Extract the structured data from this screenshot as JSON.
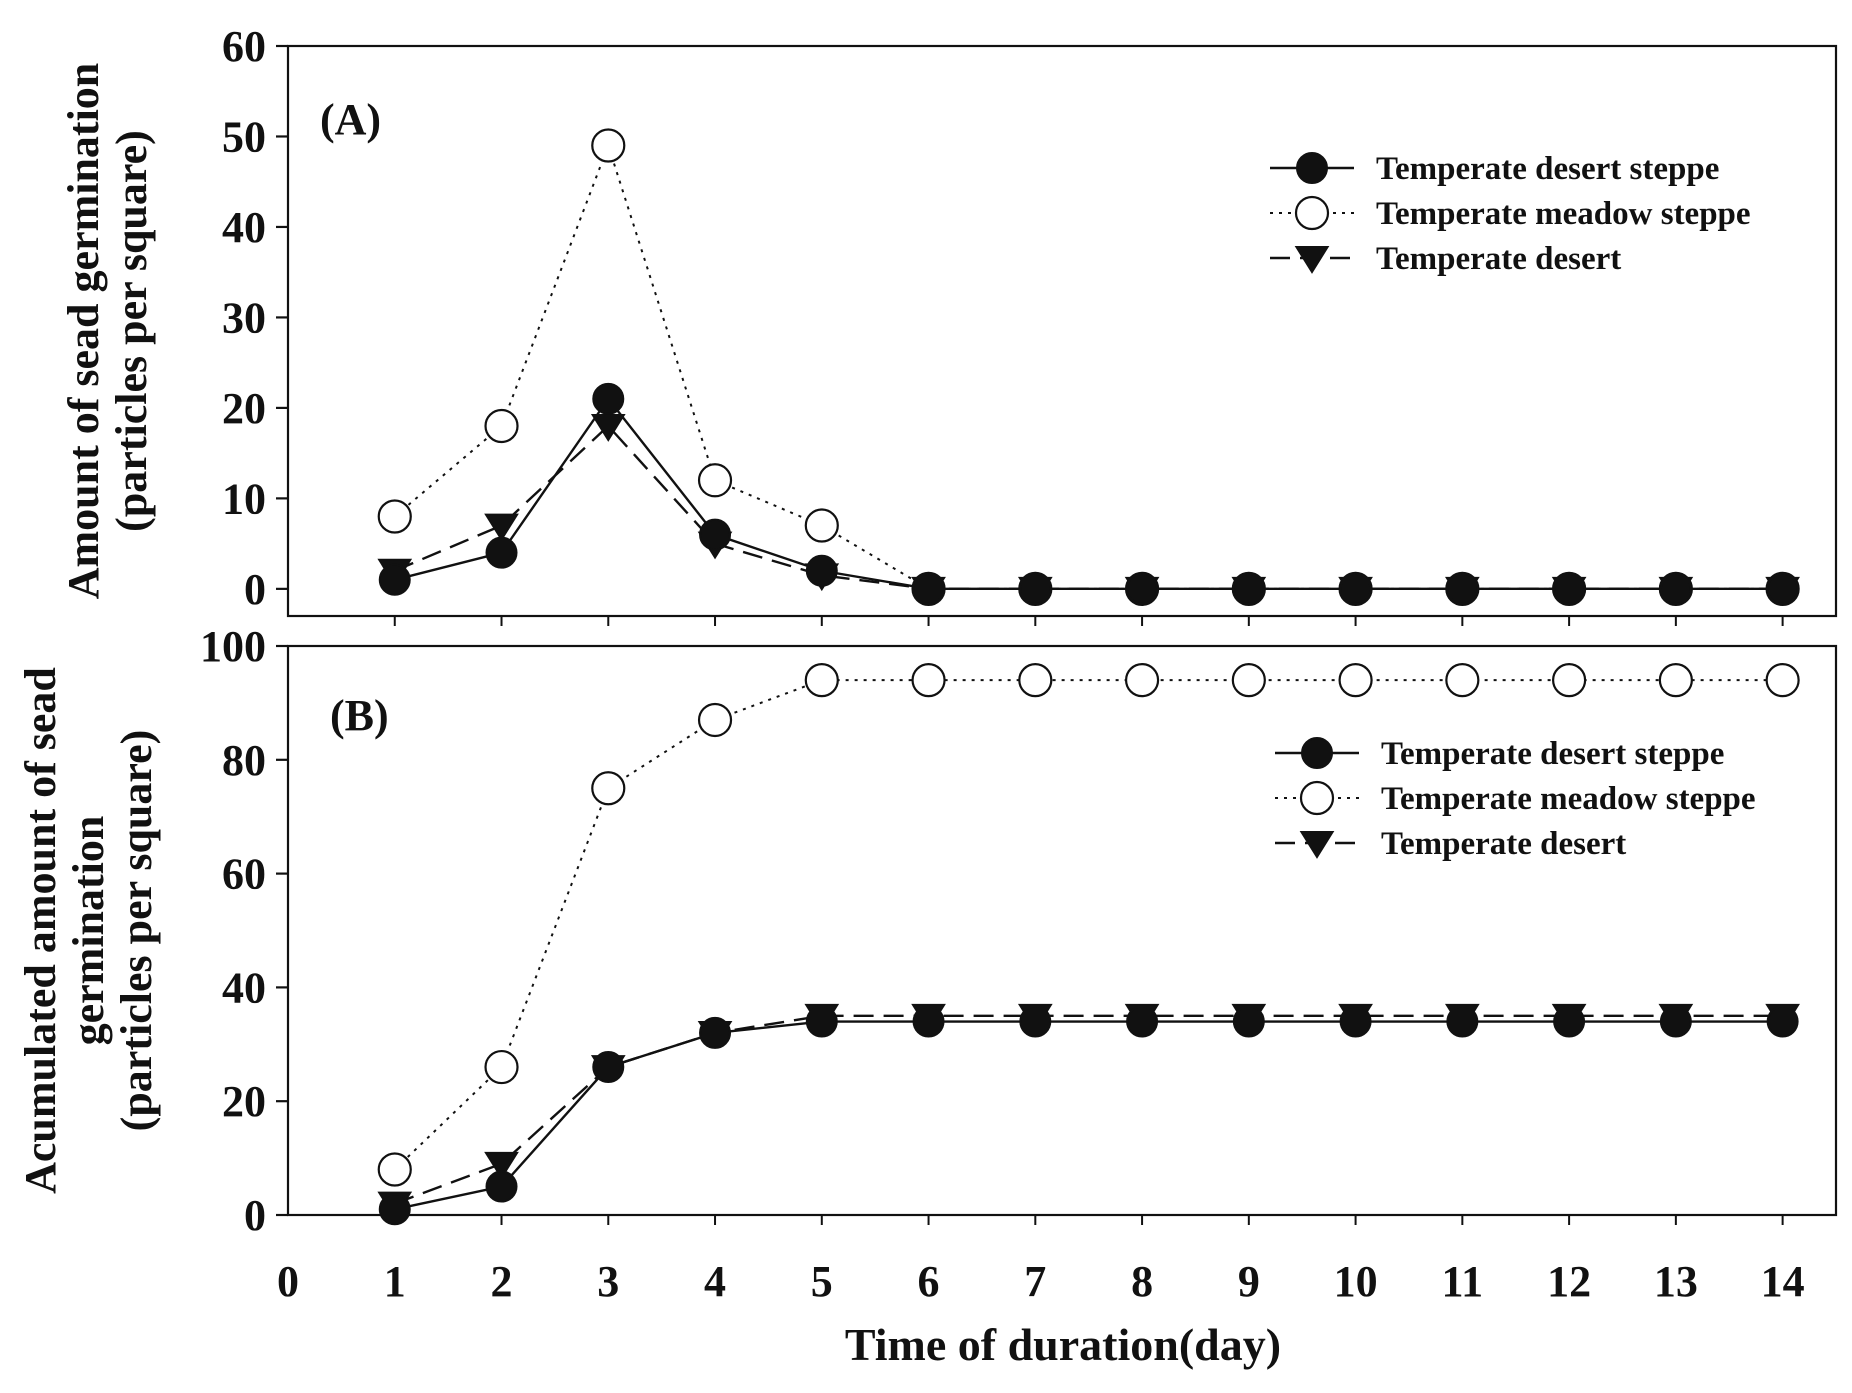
{
  "figure": {
    "xlabel": "Time of duration(day)",
    "x_tick_labels": [
      "0",
      "1",
      "2",
      "3",
      "4",
      "5",
      "6",
      "7",
      "8",
      "9",
      "10",
      "11",
      "12",
      "13",
      "14"
    ]
  },
  "chart_data": [
    {
      "type": "line",
      "panel_label": "(A)",
      "ylabel_lines": [
        "Amount of sead germination",
        "(particles per square)"
      ],
      "xlabel": "Time of duration(day)",
      "xlim": [
        0,
        14.5
      ],
      "ylim": [
        -3,
        60
      ],
      "y_ticks": [
        0,
        10,
        20,
        30,
        40,
        50,
        60
      ],
      "x": [
        1,
        2,
        3,
        4,
        5,
        6,
        7,
        8,
        9,
        10,
        11,
        12,
        13,
        14
      ],
      "series": [
        {
          "name": "Temperate desert steppe",
          "marker": "filled-circle",
          "line": "solid",
          "values": [
            1,
            4,
            21,
            6,
            2,
            0,
            0,
            0,
            0,
            0,
            0,
            0,
            0,
            0
          ]
        },
        {
          "name": "Temperate meadow steppe",
          "marker": "open-circle",
          "line": "dotted",
          "values": [
            8,
            18,
            49,
            12,
            7,
            0,
            0,
            0,
            0,
            0,
            0,
            0,
            0,
            0
          ]
        },
        {
          "name": "Temperate desert",
          "marker": "filled-triangle-down",
          "line": "dashed",
          "values": [
            2,
            7,
            18,
            5,
            1.5,
            0,
            0,
            0,
            0,
            0,
            0,
            0,
            0,
            0
          ]
        }
      ],
      "legend_position": "top-right"
    },
    {
      "type": "line",
      "panel_label": "(B)",
      "ylabel_lines": [
        "Acumulated amount of sead",
        "germination",
        "(particles per square)"
      ],
      "xlabel": "Time of duration(day)",
      "xlim": [
        0,
        14.5
      ],
      "ylim": [
        0,
        100
      ],
      "y_ticks": [
        0,
        20,
        40,
        60,
        80,
        100
      ],
      "x": [
        1,
        2,
        3,
        4,
        5,
        6,
        7,
        8,
        9,
        10,
        11,
        12,
        13,
        14
      ],
      "series": [
        {
          "name": "Temperate desert steppe",
          "marker": "filled-circle",
          "line": "solid",
          "values": [
            1,
            5,
            26,
            32,
            34,
            34,
            34,
            34,
            34,
            34,
            34,
            34,
            34,
            34
          ]
        },
        {
          "name": "Temperate meadow steppe",
          "marker": "open-circle",
          "line": "dotted",
          "values": [
            8,
            26,
            75,
            87,
            94,
            94,
            94,
            94,
            94,
            94,
            94,
            94,
            94,
            94
          ]
        },
        {
          "name": "Temperate desert",
          "marker": "filled-triangle-down",
          "line": "dashed",
          "values": [
            2,
            9,
            26,
            32,
            35,
            35,
            35,
            35,
            35,
            35,
            35,
            35,
            35,
            35
          ]
        }
      ],
      "legend_position": "top-right"
    }
  ],
  "colors": {
    "axis": "#111111",
    "series": "#111111",
    "open_marker_fill": "#ffffff"
  }
}
